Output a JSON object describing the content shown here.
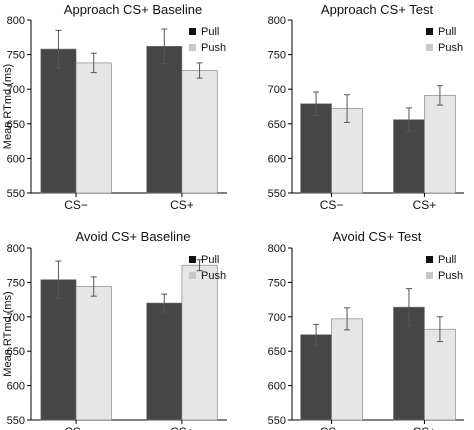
{
  "chart_data": [
    {
      "type": "bar",
      "title": "Approach CS+ Baseline",
      "ylabel": "Mean RTmd (ms)",
      "xlabel": "",
      "categories": [
        "CS−",
        "CS+"
      ],
      "ylim": [
        550,
        800
      ],
      "yticks": [
        550,
        600,
        650,
        700,
        750,
        800
      ],
      "legend": true,
      "legend_position": "top-right",
      "series": [
        {
          "name": "Pull",
          "color": "#464646",
          "values": [
            758,
            762
          ],
          "errors": [
            27,
            25
          ]
        },
        {
          "name": "Push",
          "color": "#e6e6e6",
          "values": [
            738,
            727
          ],
          "errors": [
            14,
            11
          ]
        }
      ]
    },
    {
      "type": "bar",
      "title": "Approach CS+ Test",
      "ylabel": "",
      "xlabel": "",
      "categories": [
        "CS−",
        "CS+"
      ],
      "ylim": [
        550,
        800
      ],
      "yticks": [
        550,
        600,
        650,
        700,
        750,
        800
      ],
      "legend": true,
      "legend_position": "top-right",
      "series": [
        {
          "name": "Pull",
          "color": "#464646",
          "values": [
            679,
            656
          ],
          "errors": [
            17,
            17
          ]
        },
        {
          "name": "Push",
          "color": "#e6e6e6",
          "values": [
            672,
            691
          ],
          "errors": [
            20,
            14
          ]
        }
      ]
    },
    {
      "type": "bar",
      "title": "Avoid CS+ Baseline",
      "ylabel": "Mean RTmd (ms)",
      "xlabel": "",
      "categories": [
        "CS−",
        "CS+"
      ],
      "ylim": [
        550,
        800
      ],
      "yticks": [
        550,
        600,
        650,
        700,
        750,
        800
      ],
      "legend": true,
      "legend_position": "top-right",
      "series": [
        {
          "name": "Pull",
          "color": "#464646",
          "values": [
            754,
            720
          ],
          "errors": [
            27,
            13
          ]
        },
        {
          "name": "Push",
          "color": "#e6e6e6",
          "values": [
            744,
            775
          ],
          "errors": [
            14,
            8
          ]
        }
      ]
    },
    {
      "type": "bar",
      "title": "Avoid CS+ Test",
      "ylabel": "",
      "xlabel": "",
      "categories": [
        "CS−",
        "CS+"
      ],
      "ylim": [
        550,
        800
      ],
      "yticks": [
        550,
        600,
        650,
        700,
        750,
        800
      ],
      "legend": true,
      "legend_position": "top-right",
      "series": [
        {
          "name": "Pull",
          "color": "#464646",
          "values": [
            674,
            714
          ],
          "errors": [
            15,
            27
          ]
        },
        {
          "name": "Push",
          "color": "#e6e6e6",
          "values": [
            697,
            682
          ],
          "errors": [
            16,
            18
          ]
        }
      ]
    }
  ]
}
